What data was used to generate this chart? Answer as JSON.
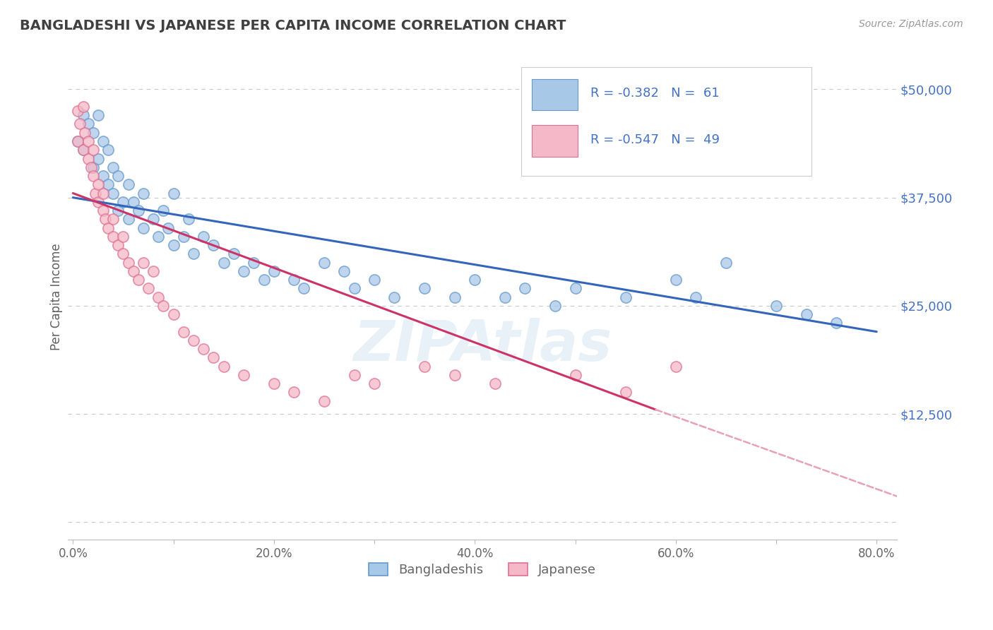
{
  "title": "BANGLADESHI VS JAPANESE PER CAPITA INCOME CORRELATION CHART",
  "source_text": "Source: ZipAtlas.com",
  "ylabel": "Per Capita Income",
  "watermark": "ZIPAtlas",
  "xlim": [
    -0.005,
    0.82
  ],
  "ylim": [
    -2000,
    54000
  ],
  "yticks": [
    0,
    12500,
    25000,
    37500,
    50000
  ],
  "ytick_labels": [
    "",
    "$12,500",
    "$25,000",
    "$37,500",
    "$50,000"
  ],
  "xticks": [
    0.0,
    0.1,
    0.2,
    0.3,
    0.4,
    0.5,
    0.6,
    0.7,
    0.8
  ],
  "xtick_labels": [
    "0.0%",
    "",
    "20.0%",
    "",
    "40.0%",
    "",
    "60.0%",
    "",
    "80.0%"
  ],
  "blue_color": "#a8c8e8",
  "pink_color": "#f4b8c8",
  "blue_edge_color": "#6699cc",
  "pink_edge_color": "#e07090",
  "blue_line_color": "#3366bb",
  "pink_line_color": "#cc3366",
  "dashed_line_color": "#e8a0b8",
  "legend_text_color": "#4472c4",
  "bangladeshi_label": "Bangladeshis",
  "japanese_label": "Japanese",
  "blue_scatter_x": [
    0.005,
    0.01,
    0.01,
    0.015,
    0.02,
    0.02,
    0.025,
    0.025,
    0.03,
    0.03,
    0.035,
    0.035,
    0.04,
    0.04,
    0.045,
    0.045,
    0.05,
    0.055,
    0.055,
    0.06,
    0.065,
    0.07,
    0.07,
    0.08,
    0.085,
    0.09,
    0.095,
    0.1,
    0.1,
    0.11,
    0.115,
    0.12,
    0.13,
    0.14,
    0.15,
    0.16,
    0.17,
    0.18,
    0.19,
    0.2,
    0.22,
    0.23,
    0.25,
    0.27,
    0.28,
    0.3,
    0.32,
    0.35,
    0.38,
    0.4,
    0.43,
    0.45,
    0.48,
    0.5,
    0.55,
    0.6,
    0.62,
    0.65,
    0.7,
    0.73,
    0.76
  ],
  "blue_scatter_y": [
    44000,
    47000,
    43000,
    46000,
    45000,
    41000,
    42000,
    47000,
    40000,
    44000,
    43000,
    39000,
    41000,
    38000,
    40000,
    36000,
    37000,
    39000,
    35000,
    37000,
    36000,
    34000,
    38000,
    35000,
    33000,
    36000,
    34000,
    32000,
    38000,
    33000,
    35000,
    31000,
    33000,
    32000,
    30000,
    31000,
    29000,
    30000,
    28000,
    29000,
    28000,
    27000,
    30000,
    29000,
    27000,
    28000,
    26000,
    27000,
    26000,
    28000,
    26000,
    27000,
    25000,
    27000,
    26000,
    28000,
    26000,
    30000,
    25000,
    24000,
    23000
  ],
  "pink_scatter_x": [
    0.005,
    0.005,
    0.007,
    0.01,
    0.01,
    0.012,
    0.015,
    0.015,
    0.018,
    0.02,
    0.02,
    0.022,
    0.025,
    0.025,
    0.03,
    0.03,
    0.032,
    0.035,
    0.04,
    0.04,
    0.045,
    0.05,
    0.05,
    0.055,
    0.06,
    0.065,
    0.07,
    0.075,
    0.08,
    0.085,
    0.09,
    0.1,
    0.11,
    0.12,
    0.13,
    0.14,
    0.15,
    0.17,
    0.2,
    0.22,
    0.25,
    0.28,
    0.3,
    0.35,
    0.38,
    0.42,
    0.5,
    0.55,
    0.6
  ],
  "pink_scatter_y": [
    47500,
    44000,
    46000,
    43000,
    48000,
    45000,
    42000,
    44000,
    41000,
    43000,
    40000,
    38000,
    39000,
    37000,
    36000,
    38000,
    35000,
    34000,
    33000,
    35000,
    32000,
    31000,
    33000,
    30000,
    29000,
    28000,
    30000,
    27000,
    29000,
    26000,
    25000,
    24000,
    22000,
    21000,
    20000,
    19000,
    18000,
    17000,
    16000,
    15000,
    14000,
    17000,
    16000,
    18000,
    17000,
    16000,
    17000,
    15000,
    18000
  ],
  "blue_trend_x": [
    0.0,
    0.8
  ],
  "blue_trend_y": [
    37500,
    22000
  ],
  "pink_trend_x": [
    0.0,
    0.58
  ],
  "pink_trend_y": [
    38000,
    13000
  ],
  "dashed_trend_x": [
    0.58,
    0.82
  ],
  "dashed_trend_y": [
    13000,
    3000
  ],
  "background_color": "#ffffff",
  "grid_color": "#c8c8c8",
  "title_color": "#404040",
  "source_color": "#999999",
  "ylabel_color": "#606060",
  "ytick_color": "#4472c4",
  "xtick_color": "#666666"
}
